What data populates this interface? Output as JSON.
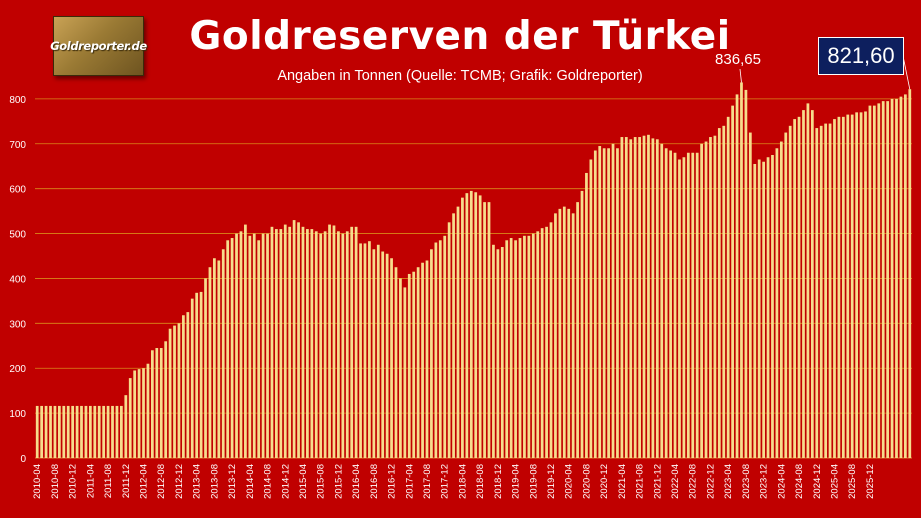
{
  "header": {
    "logo_text": "Goldreporter.de",
    "title": "Goldreserven der Türkei",
    "subtitle": "Angaben in Tonnen (Quelle: TCMB; Grafik: Goldreporter)"
  },
  "annotations": {
    "peak_label": "836,65",
    "last_value_label": "821,60"
  },
  "colors": {
    "background": "#c00000",
    "bar": "#f7dc8c",
    "grid": "#d98a1a",
    "label_box": "#0d1f5e"
  },
  "chart_data": {
    "type": "bar",
    "title": "Goldreserven der Türkei",
    "subtitle": "Angaben in Tonnen (Quelle: TCMB; Grafik: Goldreporter)",
    "ylim": [
      0,
      900
    ],
    "yticks": [
      0,
      100,
      200,
      300,
      400,
      500,
      600,
      700,
      800
    ],
    "grid": true,
    "start_month": "2010-04",
    "xticks_step_months": 4,
    "xtick_labels": [
      "2010-04",
      "2010-08",
      "2010-12",
      "2011-04",
      "2011-08",
      "2011-12",
      "2012-04",
      "2012-08",
      "2012-12",
      "2013-04",
      "2013-08",
      "2013-12",
      "2014-04",
      "2014-08",
      "2014-12",
      "2015-04",
      "2015-08",
      "2015-12",
      "2016-04",
      "2016-08",
      "2016-12",
      "2017-04",
      "2017-08",
      "2017-12",
      "2018-04",
      "2018-08",
      "2018-12",
      "2019-04",
      "2019-08",
      "2019-12",
      "2020-04",
      "2020-08",
      "2020-12",
      "2021-04",
      "2021-08",
      "2021-12",
      "2022-04",
      "2022-08",
      "2022-12",
      "2023-04",
      "2023-08",
      "2023-12",
      "2024-04",
      "2024-08",
      "2024-12",
      "2025-04",
      "2025-08",
      "2025-12"
    ],
    "series": [
      {
        "values": [
          116,
          116,
          116,
          116,
          116,
          116,
          116,
          116,
          116,
          116,
          116,
          116,
          116,
          116,
          116,
          116,
          116,
          116,
          116,
          116,
          140,
          178,
          195,
          198,
          200,
          210,
          240,
          245,
          245,
          260,
          288,
          295,
          300,
          318,
          325,
          355,
          368,
          370,
          400,
          425,
          445,
          440,
          465,
          485,
          490,
          500,
          505,
          520,
          495,
          500,
          485,
          500,
          500,
          515,
          510,
          510,
          520,
          515,
          530,
          525,
          515,
          510,
          510,
          505,
          500,
          505,
          520,
          518,
          505,
          500,
          505,
          515,
          515,
          478,
          478,
          483,
          465,
          475,
          460,
          455,
          445,
          425,
          400,
          380,
          410,
          415,
          425,
          435,
          440,
          465,
          480,
          485,
          495,
          525,
          545,
          560,
          580,
          590,
          595,
          592,
          585,
          570,
          570,
          475,
          465,
          470,
          485,
          490,
          485,
          490,
          495,
          495,
          500,
          505,
          512,
          515,
          525,
          545,
          555,
          560,
          555,
          545,
          570,
          595,
          635,
          665,
          685,
          695,
          690,
          690,
          700,
          690,
          715,
          715,
          710,
          715,
          715,
          718,
          720,
          712,
          710,
          700,
          690,
          685,
          680,
          665,
          670,
          680,
          680,
          680,
          700,
          705,
          715,
          718,
          735,
          740,
          760,
          785,
          810,
          836.65,
          820,
          725,
          655,
          665,
          660,
          670,
          675,
          690,
          705,
          725,
          740,
          755,
          760,
          775,
          790,
          775,
          735,
          740,
          745,
          745,
          755,
          760,
          760,
          765,
          765,
          770,
          770,
          772,
          785,
          785,
          790,
          795,
          795,
          800,
          800,
          805,
          810,
          821.6
        ]
      }
    ]
  }
}
